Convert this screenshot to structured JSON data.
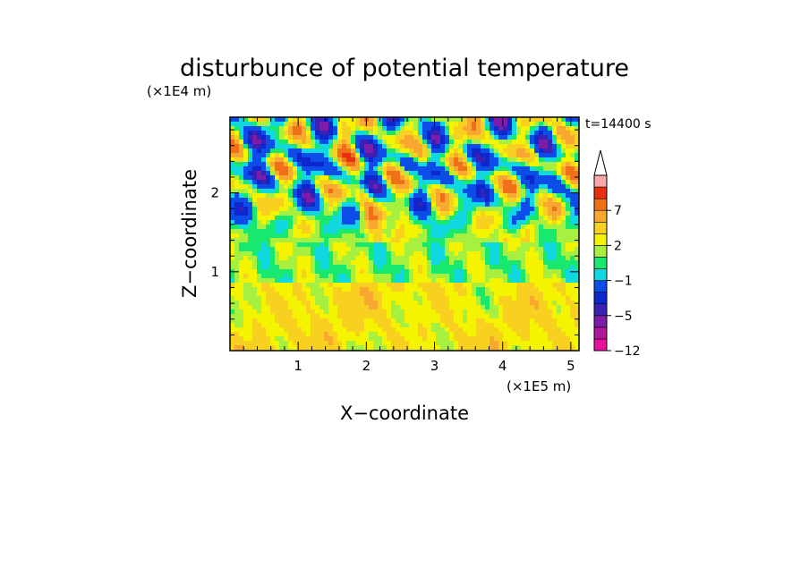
{
  "chart_data": {
    "type": "heatmap",
    "title": "disturbunce of potential temperature",
    "xlabel": "X−coordinate",
    "ylabel": "Z−coordinate",
    "x_unit": "(×1E5 m)",
    "y_unit": "(×1E4 m)",
    "time_label": "t=14400 s",
    "xlim": [
      0,
      5.12
    ],
    "ylim": [
      0,
      2.96
    ],
    "x_ticks": [
      1,
      2,
      3,
      4,
      5
    ],
    "y_ticks": [
      1,
      2
    ],
    "x_tick_labels": [
      "1",
      "2",
      "3",
      "4",
      "5"
    ],
    "y_tick_labels": [
      "1",
      "2"
    ],
    "colorbar": {
      "levels": [
        -12,
        -10,
        -8,
        -5,
        -4,
        -3,
        -1,
        0,
        1,
        2,
        4,
        5,
        7,
        9,
        11
      ],
      "labels": [
        "−12",
        "−5",
        "−1",
        "2",
        "7"
      ],
      "label_values": [
        -12,
        -5,
        -1,
        2,
        7
      ],
      "colors": [
        "#e8109c",
        "#b0189c",
        "#7c1ca8",
        "#3c20b4",
        "#0c28cc",
        "#0c4ce8",
        "#10d8e0",
        "#18e870",
        "#a8f040",
        "#f4f400",
        "#f8d020",
        "#f8a830",
        "#f07018",
        "#e83010",
        "#f8a8a8"
      ],
      "extend_max": true
    },
    "field_description": "Contour-filled field: mostly warm (yellow/orange) in lower layer below ~1 (x1E4 m), green band near 1, alternating strong warm (orange/red) and cold (blue) cells above ~1.5 with V-shaped wave patterns centered near x=2.3 and x=4.2 (x1E5 m)"
  }
}
